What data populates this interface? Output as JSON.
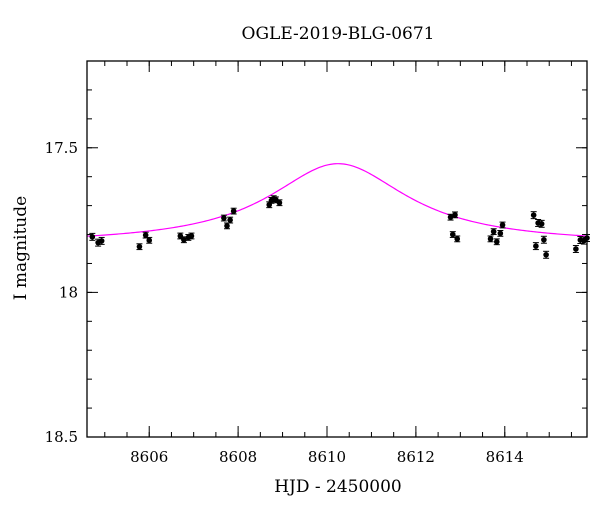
{
  "chart_data": {
    "type": "scatter",
    "title": "OGLE-2019-BLG-0671",
    "xlabel": "HJD - 2450000",
    "ylabel": "I magnitude",
    "xlim": [
      8604.6,
      8615.85
    ],
    "ylim": [
      18.5,
      17.2
    ],
    "y_inverted": true,
    "grid": false,
    "x_ticks": [
      8606,
      8608,
      8610,
      8612,
      8614
    ],
    "x_tick_labels": [
      "8606",
      "8608",
      "8610",
      "8612",
      "8614"
    ],
    "x_minor_step": 0.5,
    "y_ticks": [
      17.5,
      18,
      18.5
    ],
    "y_tick_labels": [
      "17.5",
      "18",
      "18.5"
    ],
    "y_minor_step": 0.1,
    "model_color": "#ff00ff",
    "point_color": "#000000",
    "model": {
      "t0": 8610.25,
      "baseline_mag": 17.834,
      "peak_mag": 17.555,
      "width_days": 1.9
    },
    "series": [
      {
        "kind": "observations",
        "points": [
          {
            "x": 8604.72,
            "y": 17.808,
            "err": 0.012
          },
          {
            "x": 8604.85,
            "y": 17.828,
            "err": 0.012
          },
          {
            "x": 8604.93,
            "y": 17.822,
            "err": 0.012
          },
          {
            "x": 8605.78,
            "y": 17.842,
            "err": 0.01
          },
          {
            "x": 8605.92,
            "y": 17.802,
            "err": 0.01
          },
          {
            "x": 8606.0,
            "y": 17.82,
            "err": 0.01
          },
          {
            "x": 8606.7,
            "y": 17.805,
            "err": 0.01
          },
          {
            "x": 8606.78,
            "y": 17.818,
            "err": 0.01
          },
          {
            "x": 8606.88,
            "y": 17.81,
            "err": 0.01
          },
          {
            "x": 8606.95,
            "y": 17.805,
            "err": 0.01
          },
          {
            "x": 8607.68,
            "y": 17.743,
            "err": 0.01
          },
          {
            "x": 8607.75,
            "y": 17.77,
            "err": 0.01
          },
          {
            "x": 8607.82,
            "y": 17.75,
            "err": 0.01
          },
          {
            "x": 8607.9,
            "y": 17.719,
            "err": 0.01
          },
          {
            "x": 8608.7,
            "y": 17.697,
            "err": 0.01
          },
          {
            "x": 8608.75,
            "y": 17.682,
            "err": 0.01
          },
          {
            "x": 8608.8,
            "y": 17.676,
            "err": 0.01
          },
          {
            "x": 8608.85,
            "y": 17.68,
            "err": 0.01
          },
          {
            "x": 8608.93,
            "y": 17.69,
            "err": 0.01
          },
          {
            "x": 8612.78,
            "y": 17.74,
            "err": 0.01
          },
          {
            "x": 8612.83,
            "y": 17.8,
            "err": 0.01
          },
          {
            "x": 8612.88,
            "y": 17.732,
            "err": 0.01
          },
          {
            "x": 8612.93,
            "y": 17.815,
            "err": 0.01
          },
          {
            "x": 8613.68,
            "y": 17.815,
            "err": 0.01
          },
          {
            "x": 8613.75,
            "y": 17.79,
            "err": 0.01
          },
          {
            "x": 8613.82,
            "y": 17.825,
            "err": 0.01
          },
          {
            "x": 8613.9,
            "y": 17.796,
            "err": 0.01
          },
          {
            "x": 8613.95,
            "y": 17.767,
            "err": 0.01
          },
          {
            "x": 8614.65,
            "y": 17.733,
            "err": 0.012
          },
          {
            "x": 8614.7,
            "y": 17.84,
            "err": 0.012
          },
          {
            "x": 8614.75,
            "y": 17.76,
            "err": 0.012
          },
          {
            "x": 8614.83,
            "y": 17.763,
            "err": 0.012
          },
          {
            "x": 8614.88,
            "y": 17.818,
            "err": 0.012
          },
          {
            "x": 8614.93,
            "y": 17.87,
            "err": 0.012
          },
          {
            "x": 8615.6,
            "y": 17.85,
            "err": 0.012
          },
          {
            "x": 8615.7,
            "y": 17.819,
            "err": 0.012
          },
          {
            "x": 8615.78,
            "y": 17.821,
            "err": 0.012
          },
          {
            "x": 8615.85,
            "y": 17.812,
            "err": 0.012
          }
        ]
      }
    ]
  }
}
